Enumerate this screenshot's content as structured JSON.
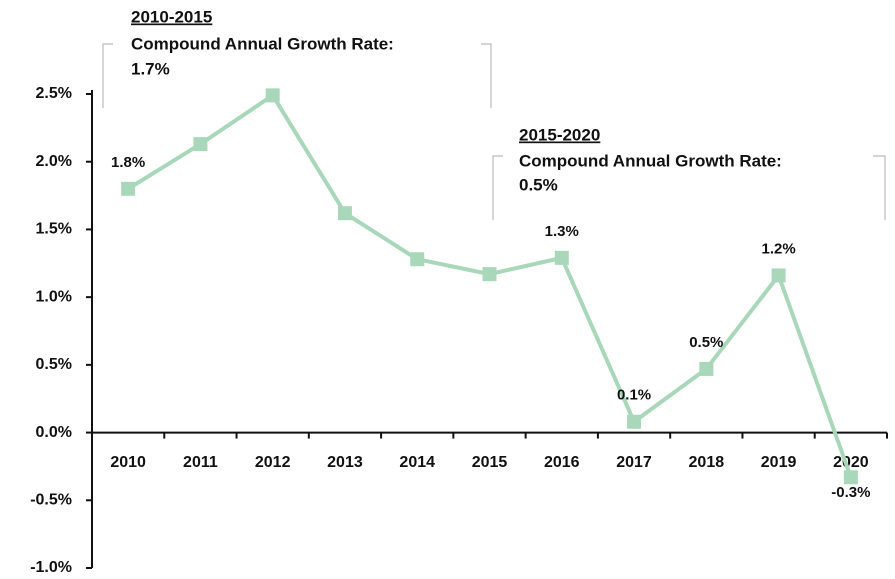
{
  "chart_data": {
    "type": "line",
    "categories": [
      "2010",
      "2011",
      "2012",
      "2013",
      "2014",
      "2015",
      "2016",
      "2017",
      "2018",
      "2019",
      "2020"
    ],
    "series": [
      {
        "color": "#a8d8b9",
        "values": [
          1.8,
          2.13,
          2.49,
          1.62,
          1.28,
          1.17,
          1.29,
          0.08,
          0.47,
          1.16,
          -0.33
        ],
        "value_labels": [
          "1.8%",
          null,
          null,
          null,
          null,
          null,
          "1.3%",
          "0.1%",
          "0.5%",
          "1.2%",
          "-0.3%"
        ]
      }
    ],
    "ylim": [
      -1.0,
      2.5
    ],
    "yticks": [
      {
        "value": -1.0,
        "label": "-1.0%"
      },
      {
        "value": -0.5,
        "label": "-0.5%"
      },
      {
        "value": 0,
        "label": "0.0%"
      },
      {
        "value": 0.5,
        "label": "0.5%"
      },
      {
        "value": 1.0,
        "label": "1.0%"
      },
      {
        "value": 1.5,
        "label": "1.5%"
      },
      {
        "value": 2.0,
        "label": "2.0%"
      },
      {
        "value": 2.5,
        "label": "2.5%"
      }
    ],
    "annotations": [
      {
        "period": "2010-2015",
        "text": "Compound Annual Growth Rate:",
        "value": "1.7%"
      },
      {
        "period": "2015-2020",
        "text": "Compound Annual Growth Rate:",
        "value": "0.5%"
      }
    ]
  }
}
